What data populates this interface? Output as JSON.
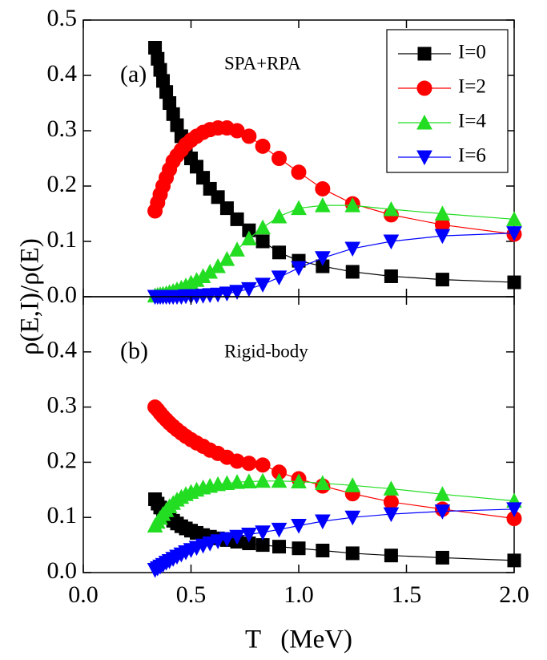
{
  "chart_data": [
    {
      "type": "line",
      "ylabel": "ρ(E,I)/ρ(E)",
      "annotations": [
        "(a)",
        "SPA+RPA"
      ],
      "legend": "upper right",
      "ylim": [
        0,
        0.5
      ],
      "xlim": [
        0,
        2.0
      ],
      "yticks": [
        {
          "value": 0,
          "label": "0.0"
        },
        0.1,
        0.2,
        0.3,
        0.4,
        0.5
      ],
      "x": [
        0.333,
        0.345,
        0.357,
        0.37,
        0.385,
        0.4,
        0.417,
        0.435,
        0.455,
        0.476,
        0.5,
        0.526,
        0.556,
        0.588,
        0.625,
        0.667,
        0.714,
        0.769,
        0.833,
        0.909,
        1.0,
        1.111,
        1.25,
        1.429,
        1.667,
        2.0
      ],
      "series": [
        {
          "name": "I=0",
          "color": "#000000",
          "marker": "square",
          "values": [
            0.45,
            0.43,
            0.41,
            0.39,
            0.37,
            0.35,
            0.33,
            0.31,
            0.29,
            0.27,
            0.25,
            0.235,
            0.215,
            0.195,
            0.18,
            0.16,
            0.14,
            0.12,
            0.1,
            0.08,
            0.065,
            0.055,
            0.045,
            0.037,
            0.031,
            0.026
          ]
        },
        {
          "name": "I=2",
          "color": "#ff0000",
          "marker": "circle",
          "values": [
            0.155,
            0.17,
            0.185,
            0.2,
            0.215,
            0.23,
            0.245,
            0.255,
            0.265,
            0.275,
            0.283,
            0.29,
            0.297,
            0.302,
            0.305,
            0.305,
            0.3,
            0.29,
            0.272,
            0.25,
            0.225,
            0.195,
            0.168,
            0.148,
            0.13,
            0.113
          ]
        },
        {
          "name": "I=4",
          "color": "#22dd22",
          "marker": "triangle-up",
          "values": [
            0.002,
            0.003,
            0.004,
            0.005,
            0.006,
            0.008,
            0.01,
            0.013,
            0.016,
            0.02,
            0.025,
            0.03,
            0.037,
            0.045,
            0.055,
            0.068,
            0.085,
            0.105,
            0.125,
            0.145,
            0.16,
            0.165,
            0.165,
            0.158,
            0.15,
            0.14
          ]
        },
        {
          "name": "I=6",
          "color": "#0000ff",
          "marker": "triangle-down",
          "values": [
            0,
            0,
            0,
            0,
            0,
            0,
            0,
            0,
            0,
            0.001,
            0.001,
            0.001,
            0.002,
            0.003,
            0.004,
            0.006,
            0.009,
            0.014,
            0.022,
            0.035,
            0.052,
            0.07,
            0.087,
            0.1,
            0.11,
            0.115
          ]
        }
      ]
    },
    {
      "type": "line",
      "xlabel": "T   (MeV)",
      "annotations": [
        "(b)",
        "Rigid-body"
      ],
      "ylim": [
        0,
        0.5
      ],
      "xlim": [
        0,
        2.0
      ],
      "yticks": [
        {
          "value": 0,
          "label": "0.0"
        },
        0.1,
        0.2,
        0.3,
        0.4
      ],
      "xticks": [
        {
          "value": 0,
          "label": "0.0"
        },
        0.5,
        {
          "value": 1,
          "label": "1.0"
        },
        1.5,
        {
          "value": 2,
          "label": "2.0"
        }
      ],
      "x": [
        0.333,
        0.345,
        0.357,
        0.37,
        0.385,
        0.4,
        0.417,
        0.435,
        0.455,
        0.476,
        0.5,
        0.526,
        0.556,
        0.588,
        0.625,
        0.667,
        0.714,
        0.769,
        0.833,
        0.909,
        1.0,
        1.111,
        1.25,
        1.429,
        1.667,
        2.0
      ],
      "series": [
        {
          "color": "#000000",
          "marker": "square",
          "values": [
            0.133,
            0.125,
            0.118,
            0.111,
            0.105,
            0.1,
            0.094,
            0.089,
            0.084,
            0.08,
            0.076,
            0.072,
            0.068,
            0.065,
            0.062,
            0.059,
            0.056,
            0.053,
            0.05,
            0.047,
            0.044,
            0.04,
            0.035,
            0.031,
            0.027,
            0.022
          ]
        },
        {
          "color": "#ff0000",
          "marker": "circle",
          "values": [
            0.3,
            0.295,
            0.289,
            0.283,
            0.277,
            0.271,
            0.265,
            0.259,
            0.253,
            0.247,
            0.241,
            0.235,
            0.229,
            0.222,
            0.216,
            0.209,
            0.202,
            0.198,
            0.195,
            0.182,
            0.17,
            0.157,
            0.143,
            0.128,
            0.115,
            0.098
          ]
        },
        {
          "color": "#22dd22",
          "marker": "triangle-up",
          "values": [
            0.085,
            0.092,
            0.099,
            0.106,
            0.113,
            0.12,
            0.126,
            0.132,
            0.137,
            0.142,
            0.146,
            0.15,
            0.154,
            0.157,
            0.16,
            0.162,
            0.164,
            0.165,
            0.166,
            0.166,
            0.165,
            0.162,
            0.158,
            0.152,
            0.142,
            0.13
          ]
        },
        {
          "color": "#0000ff",
          "marker": "triangle-down",
          "values": [
            0.005,
            0.008,
            0.011,
            0.014,
            0.018,
            0.021,
            0.025,
            0.029,
            0.033,
            0.037,
            0.041,
            0.045,
            0.049,
            0.053,
            0.057,
            0.061,
            0.065,
            0.069,
            0.073,
            0.078,
            0.085,
            0.093,
            0.1,
            0.106,
            0.111,
            0.115
          ]
        }
      ]
    }
  ]
}
